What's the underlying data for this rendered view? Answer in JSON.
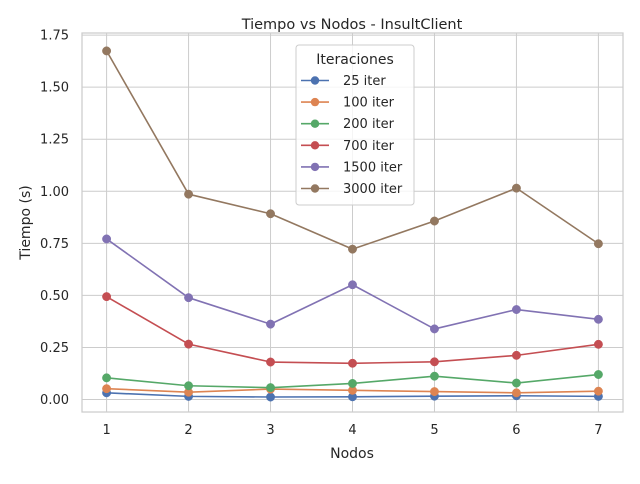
{
  "chart_data": {
    "type": "line",
    "title": "Tiempo vs Nodos - InsultClient",
    "xlabel": "Nodos",
    "ylabel": "Tiempo (s)",
    "x": [
      1,
      2,
      3,
      4,
      5,
      6,
      7
    ],
    "x_ticks": [
      "1",
      "2",
      "3",
      "4",
      "5",
      "6",
      "7"
    ],
    "xlim": [
      0.7,
      7.3
    ],
    "ylim": [
      -0.06,
      1.76
    ],
    "y_ticks": [
      "0.00",
      "0.25",
      "0.50",
      "0.75",
      "1.00",
      "1.25",
      "1.50",
      "1.75"
    ],
    "grid": true,
    "legend_title": "Iteraciones",
    "legend_position": "top-center",
    "series": [
      {
        "name": "25 iter",
        "color": "#4c72b0",
        "values": [
          0.032,
          0.015,
          0.012,
          0.013,
          0.016,
          0.018,
          0.015
        ]
      },
      {
        "name": "100 iter",
        "color": "#dd8452",
        "values": [
          0.052,
          0.035,
          0.05,
          0.044,
          0.038,
          0.032,
          0.04
        ]
      },
      {
        "name": "200 iter",
        "color": "#55a868",
        "values": [
          0.104,
          0.066,
          0.057,
          0.077,
          0.112,
          0.079,
          0.12
        ]
      },
      {
        "name": "700 iter",
        "color": "#c44e52",
        "values": [
          0.494,
          0.266,
          0.18,
          0.174,
          0.181,
          0.212,
          0.265
        ]
      },
      {
        "name": "1500 iter",
        "color": "#8172b3",
        "values": [
          0.771,
          0.489,
          0.362,
          0.551,
          0.339,
          0.432,
          0.385
        ]
      },
      {
        "name": "3000 iter",
        "color": "#937860",
        "values": [
          1.674,
          0.986,
          0.892,
          0.722,
          0.857,
          1.015,
          0.748
        ]
      }
    ]
  }
}
